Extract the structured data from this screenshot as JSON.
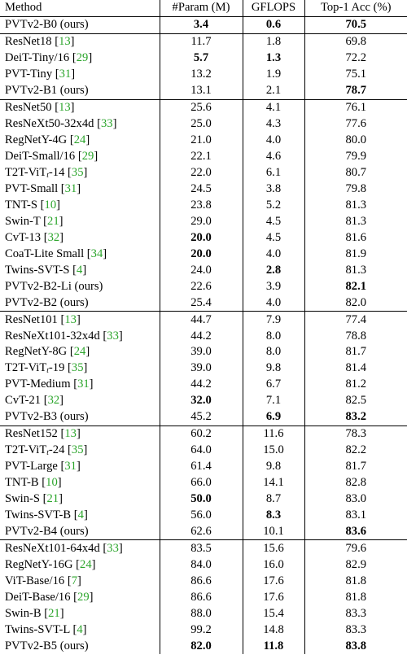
{
  "header": {
    "method": "Method",
    "param": "#Param (M)",
    "gflops": "GFLOPS",
    "top1": "Top-1 Acc (%)"
  },
  "groups": [
    [
      {
        "name": "PVTv2-B0 (ours)",
        "param": "3.4",
        "gflops": "0.6",
        "top1": "70.5",
        "bold": [
          "param",
          "gflops",
          "top1"
        ]
      }
    ],
    [
      {
        "name": "ResNet18",
        "ref": "13",
        "param": "11.7",
        "gflops": "1.8",
        "top1": "69.8"
      },
      {
        "name": "DeiT-Tiny/16",
        "ref": "29",
        "param": "5.7",
        "gflops": "1.3",
        "top1": "72.2",
        "bold": [
          "param",
          "gflops"
        ]
      },
      {
        "name": "PVT-Tiny",
        "ref": "31",
        "param": "13.2",
        "gflops": "1.9",
        "top1": "75.1"
      },
      {
        "name": "PVTv2-B1 (ours)",
        "param": "13.1",
        "gflops": "2.1",
        "top1": "78.7",
        "bold": [
          "top1"
        ]
      }
    ],
    [
      {
        "name": "ResNet50",
        "ref": "13",
        "param": "25.6",
        "gflops": "4.1",
        "top1": "76.1"
      },
      {
        "name": "ResNeXt50-32x4d",
        "ref": "33",
        "param": "25.0",
        "gflops": "4.3",
        "top1": "77.6"
      },
      {
        "name": "RegNetY-4G",
        "ref": "24",
        "param": "21.0",
        "gflops": "4.0",
        "top1": "80.0"
      },
      {
        "name": "DeiT-Small/16",
        "ref": "29",
        "param": "22.1",
        "gflops": "4.6",
        "top1": "79.9"
      },
      {
        "name": "T2T-ViT",
        "sub": "t",
        "suffix": "-14",
        "ref": "35",
        "param": "22.0",
        "gflops": "6.1",
        "top1": "80.7"
      },
      {
        "name": "PVT-Small",
        "ref": "31",
        "param": "24.5",
        "gflops": "3.8",
        "top1": "79.8"
      },
      {
        "name": "TNT-S",
        "ref": "10",
        "param": "23.8",
        "gflops": "5.2",
        "top1": "81.3"
      },
      {
        "name": "Swin-T",
        "ref": "21",
        "param": "29.0",
        "gflops": "4.5",
        "top1": "81.3"
      },
      {
        "name": "CvT-13",
        "ref": "32",
        "param": "20.0",
        "gflops": "4.5",
        "top1": "81.6",
        "bold": [
          "param"
        ]
      },
      {
        "name": "CoaT-Lite Small",
        "ref": "34",
        "param": "20.0",
        "gflops": "4.0",
        "top1": "81.9",
        "bold": [
          "param"
        ]
      },
      {
        "name": "Twins-SVT-S",
        "ref": "4",
        "param": "24.0",
        "gflops": "2.8",
        "top1": "81.3",
        "bold": [
          "gflops"
        ]
      },
      {
        "name": "PVTv2-B2-Li (ours)",
        "param": "22.6",
        "gflops": "3.9",
        "top1": "82.1",
        "bold": [
          "top1"
        ]
      },
      {
        "name": "PVTv2-B2 (ours)",
        "param": "25.4",
        "gflops": "4.0",
        "top1": "82.0"
      }
    ],
    [
      {
        "name": "ResNet101",
        "ref": "13",
        "param": "44.7",
        "gflops": "7.9",
        "top1": "77.4"
      },
      {
        "name": "ResNeXt101-32x4d",
        "ref": "33",
        "param": "44.2",
        "gflops": "8.0",
        "top1": "78.8"
      },
      {
        "name": "RegNetY-8G",
        "ref": "24",
        "param": "39.0",
        "gflops": "8.0",
        "top1": "81.7"
      },
      {
        "name": "T2T-ViT",
        "sub": "t",
        "suffix": "-19",
        "ref": "35",
        "param": "39.0",
        "gflops": "9.8",
        "top1": "81.4"
      },
      {
        "name": "PVT-Medium",
        "ref": "31",
        "param": "44.2",
        "gflops": "6.7",
        "top1": "81.2"
      },
      {
        "name": "CvT-21",
        "ref": "32",
        "param": "32.0",
        "gflops": "7.1",
        "top1": "82.5",
        "bold": [
          "param"
        ]
      },
      {
        "name": "PVTv2-B3 (ours)",
        "param": "45.2",
        "gflops": "6.9",
        "top1": "83.2",
        "bold": [
          "gflops",
          "top1"
        ]
      }
    ],
    [
      {
        "name": "ResNet152",
        "ref": "13",
        "param": "60.2",
        "gflops": "11.6",
        "top1": "78.3"
      },
      {
        "name": "T2T-ViT",
        "sub": "t",
        "suffix": "-24",
        "ref": "35",
        "param": "64.0",
        "gflops": "15.0",
        "top1": "82.2"
      },
      {
        "name": "PVT-Large",
        "ref": "31",
        "param": "61.4",
        "gflops": "9.8",
        "top1": "81.7"
      },
      {
        "name": "TNT-B",
        "ref": "10",
        "param": "66.0",
        "gflops": "14.1",
        "top1": "82.8"
      },
      {
        "name": "Swin-S",
        "ref": "21",
        "param": "50.0",
        "gflops": "8.7",
        "top1": "83.0",
        "bold": [
          "param"
        ]
      },
      {
        "name": "Twins-SVT-B",
        "ref": "4",
        "param": "56.0",
        "gflops": "8.3",
        "top1": "83.1",
        "bold": [
          "gflops"
        ]
      },
      {
        "name": "PVTv2-B4 (ours)",
        "param": "62.6",
        "gflops": "10.1",
        "top1": "83.6",
        "bold": [
          "top1"
        ]
      }
    ],
    [
      {
        "name": "ResNeXt101-64x4d",
        "ref": "33",
        "param": "83.5",
        "gflops": "15.6",
        "top1": "79.6"
      },
      {
        "name": "RegNetY-16G",
        "ref": "24",
        "param": "84.0",
        "gflops": "16.0",
        "top1": "82.9"
      },
      {
        "name": "ViT-Base/16",
        "ref": "7",
        "param": "86.6",
        "gflops": "17.6",
        "top1": "81.8"
      },
      {
        "name": "DeiT-Base/16",
        "ref": "29",
        "param": "86.6",
        "gflops": "17.6",
        "top1": "81.8"
      },
      {
        "name": "Swin-B",
        "ref": "21",
        "param": "88.0",
        "gflops": "15.4",
        "top1": "83.3"
      },
      {
        "name": "Twins-SVT-L",
        "ref": "4",
        "param": "99.2",
        "gflops": "14.8",
        "top1": "83.3"
      },
      {
        "name": "PVTv2-B5 (ours)",
        "param": "82.0",
        "gflops": "11.8",
        "top1": "83.8",
        "bold": [
          "param",
          "gflops",
          "top1"
        ]
      }
    ]
  ],
  "colors": {
    "reference_link": "#2ca52c",
    "text": "#000000",
    "rule": "#000000"
  }
}
